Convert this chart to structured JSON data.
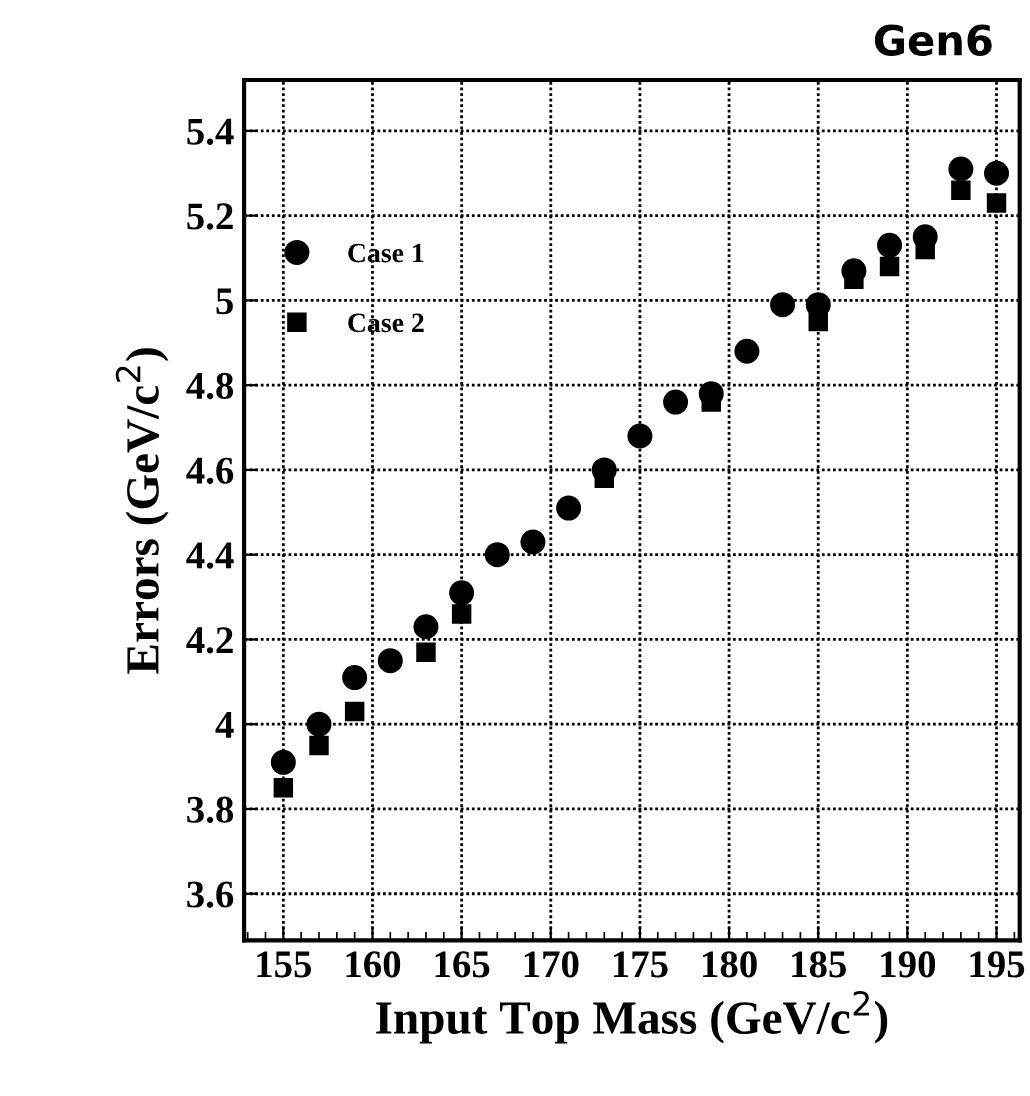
{
  "chart_data": {
    "type": "scatter",
    "title": "Gen6",
    "xlabel": "Input Top Mass (GeV/c$^{2}$)",
    "ylabel": "Errors (GeV/c$^{2}$)",
    "x": [
      155,
      157,
      159,
      161,
      163,
      165,
      167,
      169,
      171,
      173,
      175,
      177,
      179,
      181,
      183,
      185,
      187,
      189,
      191,
      193,
      195
    ],
    "series": [
      {
        "name": "Case 1",
        "color": "#000000",
        "marker": "circle",
        "values": [
          3.91,
          4.0,
          4.11,
          4.15,
          4.23,
          4.31,
          4.4,
          4.43,
          4.51,
          4.6,
          4.68,
          4.76,
          4.78,
          4.88,
          4.99,
          4.99,
          5.07,
          5.13,
          5.15,
          5.31,
          5.3
        ]
      },
      {
        "name": "Case 2",
        "color": "#000000",
        "marker": "square",
        "values": [
          3.85,
          3.95,
          4.03,
          null,
          4.17,
          4.26,
          null,
          null,
          null,
          4.58,
          null,
          null,
          4.76,
          null,
          null,
          4.95,
          5.05,
          5.08,
          5.12,
          5.26,
          5.23
        ]
      }
    ],
    "xlim": [
      152.8,
      196.3
    ],
    "ylim": [
      3.49,
      5.52
    ],
    "xticks": [
      155,
      160,
      165,
      170,
      175,
      180,
      185,
      190,
      195
    ],
    "yticks": [
      3.6,
      3.8,
      4,
      4.2,
      4.4,
      4.6,
      4.8,
      5,
      5.2,
      5.4
    ],
    "grid": true,
    "legend": "top left"
  }
}
